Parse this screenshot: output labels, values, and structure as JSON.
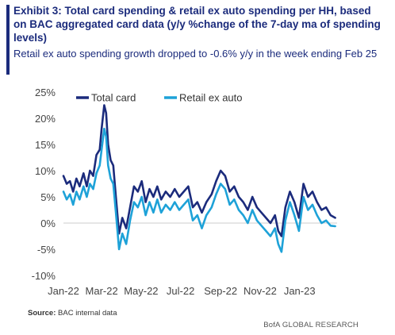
{
  "header": {
    "title": "Exhibit 3: Total card spending & retail ex auto spending per HH, based on BAC aggregated card data (y/y %change of the 7-day ma of spending levels)",
    "subtitle": "Retail ex auto spending growth dropped to -0.6% y/y in the week ending Feb 25"
  },
  "footer": {
    "source_label": "Source:",
    "source_text": "BAC internal data",
    "brand": "BofA GLOBAL RESEARCH"
  },
  "colors": {
    "total_card": "#1b2b7c",
    "retail_ex_auto": "#1ea2d8",
    "accent": "#1b2b7c"
  },
  "chart_data": {
    "type": "line",
    "x_domain": [
      "2022-01-01",
      "2023-02-28"
    ],
    "x_ticks": [
      "Jan-22",
      "Mar-22",
      "May-22",
      "Jul-22",
      "Sep-22",
      "Nov-22",
      "Jan-23"
    ],
    "y_ticks": [
      "25%",
      "20%",
      "15%",
      "10%",
      "5%",
      "0%",
      "-5%",
      "-10%"
    ],
    "ylim": [
      -10,
      25
    ],
    "y_unit": "%",
    "legend_position": "top-left",
    "series": [
      {
        "name": "Total card",
        "color": "#1b2b7c",
        "points": [
          [
            "2022-01-01",
            9
          ],
          [
            "2022-01-06",
            7.5
          ],
          [
            "2022-01-11",
            8
          ],
          [
            "2022-01-16",
            6
          ],
          [
            "2022-01-21",
            8.5
          ],
          [
            "2022-01-26",
            7
          ],
          [
            "2022-02-01",
            9.5
          ],
          [
            "2022-02-06",
            7
          ],
          [
            "2022-02-11",
            10
          ],
          [
            "2022-02-16",
            9
          ],
          [
            "2022-02-21",
            13
          ],
          [
            "2022-02-26",
            14
          ],
          [
            "2022-03-01",
            18
          ],
          [
            "2022-03-05",
            22.5
          ],
          [
            "2022-03-08",
            21
          ],
          [
            "2022-03-11",
            15
          ],
          [
            "2022-03-15",
            12
          ],
          [
            "2022-03-19",
            11
          ],
          [
            "2022-03-23",
            5
          ],
          [
            "2022-03-28",
            -2
          ],
          [
            "2022-04-02",
            1
          ],
          [
            "2022-04-08",
            -1
          ],
          [
            "2022-04-14",
            3
          ],
          [
            "2022-04-20",
            7
          ],
          [
            "2022-04-26",
            6
          ],
          [
            "2022-05-02",
            8
          ],
          [
            "2022-05-08",
            4
          ],
          [
            "2022-05-14",
            6.5
          ],
          [
            "2022-05-20",
            5
          ],
          [
            "2022-05-26",
            7
          ],
          [
            "2022-06-01",
            4.5
          ],
          [
            "2022-06-08",
            6
          ],
          [
            "2022-06-15",
            5
          ],
          [
            "2022-06-22",
            6.5
          ],
          [
            "2022-06-29",
            5
          ],
          [
            "2022-07-06",
            6
          ],
          [
            "2022-07-13",
            7
          ],
          [
            "2022-07-20",
            3
          ],
          [
            "2022-07-27",
            4
          ],
          [
            "2022-08-03",
            2
          ],
          [
            "2022-08-10",
            4
          ],
          [
            "2022-08-18",
            5.5
          ],
          [
            "2022-08-25",
            8
          ],
          [
            "2022-09-01",
            10
          ],
          [
            "2022-09-08",
            9
          ],
          [
            "2022-09-15",
            6
          ],
          [
            "2022-09-22",
            7
          ],
          [
            "2022-09-29",
            5
          ],
          [
            "2022-10-06",
            4
          ],
          [
            "2022-10-13",
            2.5
          ],
          [
            "2022-10-20",
            5
          ],
          [
            "2022-10-27",
            3
          ],
          [
            "2022-11-03",
            2
          ],
          [
            "2022-11-10",
            1
          ],
          [
            "2022-11-17",
            0
          ],
          [
            "2022-11-24",
            1.5
          ],
          [
            "2022-11-29",
            -1.5
          ],
          [
            "2022-12-04",
            -2.5
          ],
          [
            "2022-12-10",
            3
          ],
          [
            "2022-12-17",
            6
          ],
          [
            "2022-12-24",
            4
          ],
          [
            "2022-12-31",
            1
          ],
          [
            "2023-01-07",
            7.5
          ],
          [
            "2023-01-14",
            5
          ],
          [
            "2023-01-21",
            6
          ],
          [
            "2023-01-28",
            4
          ],
          [
            "2023-02-04",
            2.5
          ],
          [
            "2023-02-11",
            3
          ],
          [
            "2023-02-18",
            1.5
          ],
          [
            "2023-02-25",
            1
          ]
        ]
      },
      {
        "name": "Retail ex auto",
        "color": "#1ea2d8",
        "points": [
          [
            "2022-01-01",
            6
          ],
          [
            "2022-01-06",
            4.5
          ],
          [
            "2022-01-11",
            5.5
          ],
          [
            "2022-01-16",
            3.5
          ],
          [
            "2022-01-21",
            6
          ],
          [
            "2022-01-26",
            4.5
          ],
          [
            "2022-02-01",
            7
          ],
          [
            "2022-02-06",
            5
          ],
          [
            "2022-02-11",
            7.5
          ],
          [
            "2022-02-16",
            6.5
          ],
          [
            "2022-02-21",
            9.5
          ],
          [
            "2022-02-26",
            11
          ],
          [
            "2022-03-01",
            14
          ],
          [
            "2022-03-05",
            18
          ],
          [
            "2022-03-08",
            16.5
          ],
          [
            "2022-03-11",
            11
          ],
          [
            "2022-03-15",
            8.5
          ],
          [
            "2022-03-19",
            7.5
          ],
          [
            "2022-03-23",
            2
          ],
          [
            "2022-03-28",
            -5
          ],
          [
            "2022-04-02",
            -2
          ],
          [
            "2022-04-08",
            -4
          ],
          [
            "2022-04-14",
            0.5
          ],
          [
            "2022-04-20",
            4
          ],
          [
            "2022-04-26",
            3
          ],
          [
            "2022-05-02",
            5
          ],
          [
            "2022-05-08",
            1.5
          ],
          [
            "2022-05-14",
            4
          ],
          [
            "2022-05-20",
            2
          ],
          [
            "2022-05-26",
            4.5
          ],
          [
            "2022-06-01",
            2
          ],
          [
            "2022-06-08",
            3.5
          ],
          [
            "2022-06-15",
            2.5
          ],
          [
            "2022-06-22",
            4
          ],
          [
            "2022-06-29",
            2.5
          ],
          [
            "2022-07-06",
            3.5
          ],
          [
            "2022-07-13",
            4.5
          ],
          [
            "2022-07-20",
            0.5
          ],
          [
            "2022-07-27",
            1.5
          ],
          [
            "2022-08-03",
            -1
          ],
          [
            "2022-08-10",
            1.5
          ],
          [
            "2022-08-18",
            3
          ],
          [
            "2022-08-25",
            5.5
          ],
          [
            "2022-09-01",
            7.5
          ],
          [
            "2022-09-08",
            6.5
          ],
          [
            "2022-09-15",
            3.5
          ],
          [
            "2022-09-22",
            4.5
          ],
          [
            "2022-09-29",
            2.5
          ],
          [
            "2022-10-06",
            1.5
          ],
          [
            "2022-10-13",
            0
          ],
          [
            "2022-10-20",
            2.5
          ],
          [
            "2022-10-27",
            0.5
          ],
          [
            "2022-11-03",
            -0.5
          ],
          [
            "2022-11-10",
            -1.5
          ],
          [
            "2022-11-17",
            -2.5
          ],
          [
            "2022-11-24",
            -1
          ],
          [
            "2022-11-29",
            -4
          ],
          [
            "2022-12-04",
            -5.5
          ],
          [
            "2022-12-10",
            0.5
          ],
          [
            "2022-12-17",
            4
          ],
          [
            "2022-12-24",
            1.5
          ],
          [
            "2022-12-31",
            -1.5
          ],
          [
            "2023-01-07",
            5
          ],
          [
            "2023-01-14",
            2.5
          ],
          [
            "2023-01-21",
            3.5
          ],
          [
            "2023-01-28",
            1.5
          ],
          [
            "2023-02-04",
            0
          ],
          [
            "2023-02-11",
            0.5
          ],
          [
            "2023-02-18",
            -0.5
          ],
          [
            "2023-02-25",
            -0.6
          ]
        ]
      }
    ]
  }
}
